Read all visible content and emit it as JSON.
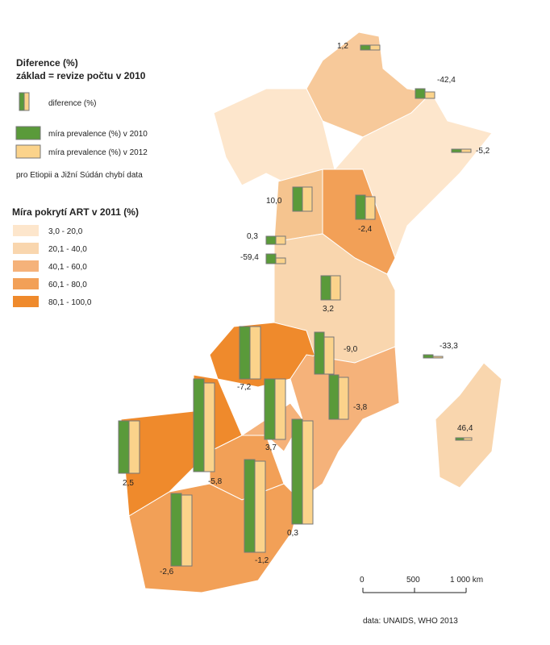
{
  "legend": {
    "title": "Diference (%)",
    "subtitle": "základ = revize počtu v 2010",
    "items": [
      "diference (%)",
      "míra prevalence (%) v 2010",
      "míra prevalence (%) v 2012"
    ],
    "note": "pro Etiopii a Jižní Súdán chybí data",
    "art_title": "Míra pokrytí ART v  2011 (%)",
    "art_classes": [
      "3,0 - 20,0",
      "20,1 - 40,0",
      "40,1 - 60,0",
      "60,1 - 80,0",
      "80,1 - 100,0"
    ]
  },
  "labels": [
    "1,2",
    "-42,4",
    "-5,2",
    "10,0",
    "-2,4",
    "0,3",
    "-59,4",
    "3,2",
    "-9,0",
    "-33,3",
    "-7,2",
    "-3,8",
    "3,7",
    "46,4",
    "2,5",
    "-5,8",
    "0,3",
    "-1,2",
    "-2,6"
  ],
  "scale": [
    "0",
    "500",
    "1 000 km"
  ],
  "source": "data: UNAIDS, WHO 2013"
}
